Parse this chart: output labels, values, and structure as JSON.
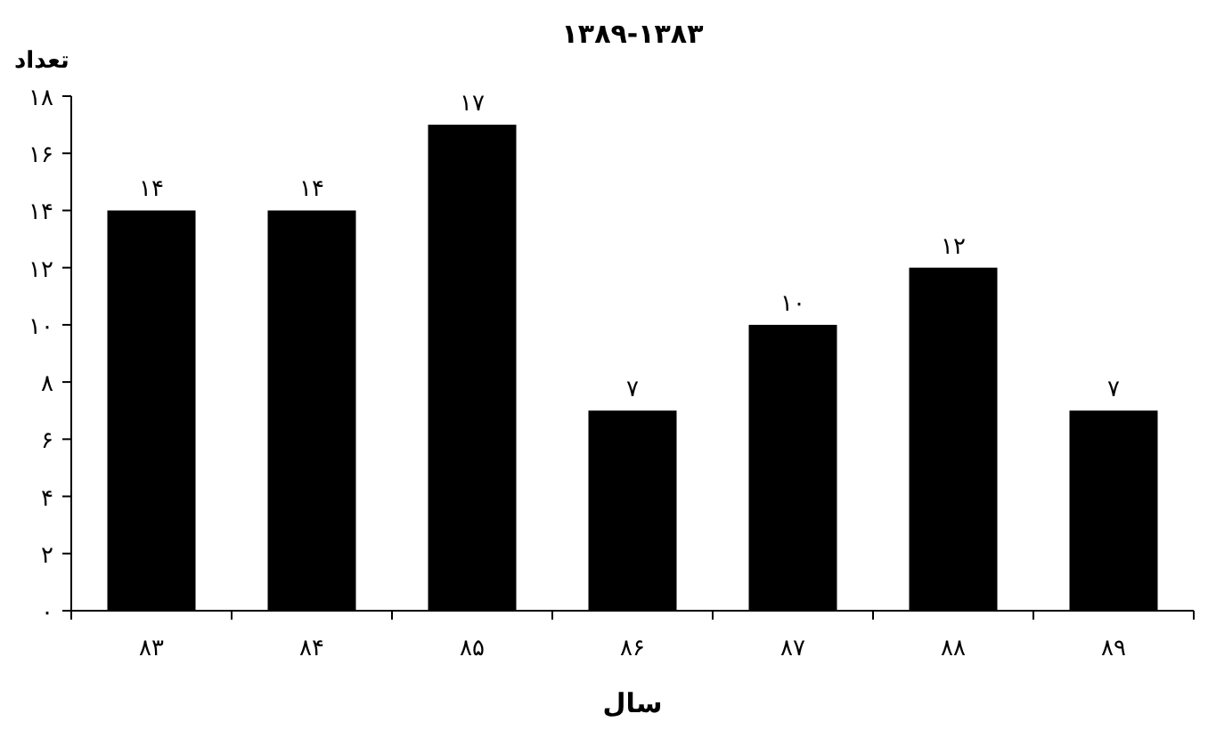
{
  "chart_data": {
    "type": "bar",
    "title": "۱۳۸۹-۱۳۸۳",
    "xlabel": "سال",
    "ylabel": "تعداد",
    "categories": [
      "۸۳",
      "۸۴",
      "۸۵",
      "۸۶",
      "۸۷",
      "۸۸",
      "۸۹"
    ],
    "values": [
      14,
      14,
      17,
      7,
      10,
      12,
      7
    ],
    "value_labels": [
      "۱۴",
      "۱۴",
      "۱۷",
      "۷",
      "۱۰",
      "۱۲",
      "۷"
    ],
    "color": "#000000",
    "ylim": [
      0,
      18
    ],
    "yticks": [
      {
        "value": 0,
        "label": "۰"
      },
      {
        "value": 2,
        "label": "۲"
      },
      {
        "value": 4,
        "label": "۴"
      },
      {
        "value": 6,
        "label": "۶"
      },
      {
        "value": 8,
        "label": "۸"
      },
      {
        "value": 10,
        "label": "۱۰"
      },
      {
        "value": 12,
        "label": "۱۲"
      },
      {
        "value": 14,
        "label": "۱۴"
      },
      {
        "value": 16,
        "label": "۱۶"
      },
      {
        "value": 18,
        "label": "۱۸"
      }
    ],
    "grid": false
  }
}
